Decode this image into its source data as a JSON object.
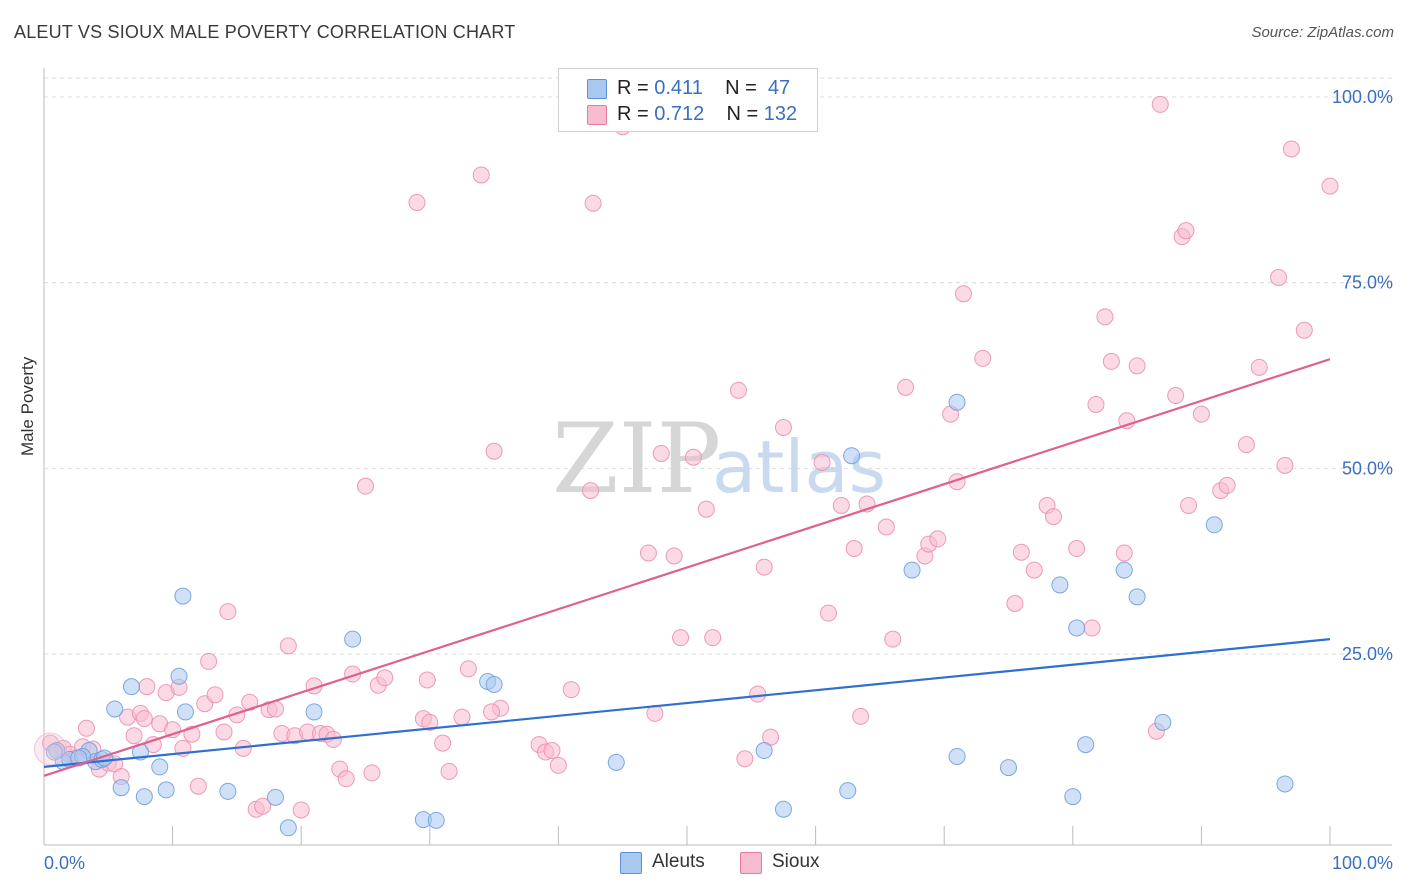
{
  "title": "ALEUT VS SIOUX MALE POVERTY CORRELATION CHART",
  "source": "Source: ZipAtlas.com",
  "legend": {
    "rows": [
      {
        "r_label": "R =",
        "r_value": "0.411",
        "n_label": "N =",
        "n_value": "47",
        "color": "#a9c8f0",
        "border": "#5b8fd6"
      },
      {
        "r_label": "R =",
        "r_value": "0.712",
        "n_label": "N =",
        "n_value": "132",
        "color": "#f7bcd0",
        "border": "#e87aa0"
      }
    ]
  },
  "bottom_legend": [
    {
      "label": "Aleuts",
      "color": "#a9c8f0",
      "border": "#5b8fd6"
    },
    {
      "label": "Sioux",
      "color": "#f7bcd0",
      "border": "#e87aa0"
    }
  ],
  "watermark": {
    "zip": "ZIP",
    "atlas": "atlas"
  },
  "chart_data": {
    "type": "scatter",
    "title": "ALEUT VS SIOUX MALE POVERTY CORRELATION CHART",
    "xlabel": "",
    "ylabel": "Male Poverty",
    "xlim": [
      0,
      100
    ],
    "ylim": [
      0,
      105
    ],
    "x_tick_labels": [
      "0.0%",
      "100.0%"
    ],
    "y_tick_labels": [
      "25.0%",
      "50.0%",
      "75.0%",
      "100.0%"
    ],
    "y_ticks": [
      25,
      50,
      75,
      100
    ],
    "series": [
      {
        "name": "Aleuts",
        "color": "#6f9fe0",
        "fill": "#a9c8f0",
        "line_color": "#2f6fd0",
        "trend": {
          "x": [
            0,
            100
          ],
          "y": [
            9.8,
            27.0
          ]
        },
        "points": [
          {
            "x": 1.5,
            "y": 10.5
          },
          {
            "x": 2.0,
            "y": 10.8
          },
          {
            "x": 3.5,
            "y": 12.0
          },
          {
            "x": 4.0,
            "y": 10.5
          },
          {
            "x": 4.5,
            "y": 10.8
          },
          {
            "x": 5.5,
            "y": 17.6
          },
          {
            "x": 6.0,
            "y": 7.0
          },
          {
            "x": 6.8,
            "y": 20.6
          },
          {
            "x": 7.5,
            "y": 11.8
          },
          {
            "x": 7.8,
            "y": 5.8
          },
          {
            "x": 9.0,
            "y": 9.8
          },
          {
            "x": 9.5,
            "y": 6.7
          },
          {
            "x": 10.5,
            "y": 22.0
          },
          {
            "x": 10.8,
            "y": 32.8
          },
          {
            "x": 11.0,
            "y": 17.2
          },
          {
            "x": 14.3,
            "y": 6.5
          },
          {
            "x": 18.0,
            "y": 5.7
          },
          {
            "x": 19.0,
            "y": 1.6
          },
          {
            "x": 21.0,
            "y": 17.2
          },
          {
            "x": 24.0,
            "y": 27.0
          },
          {
            "x": 29.5,
            "y": 2.7
          },
          {
            "x": 30.5,
            "y": 2.6
          },
          {
            "x": 34.5,
            "y": 21.3
          },
          {
            "x": 35.0,
            "y": 20.9
          },
          {
            "x": 44.5,
            "y": 10.4
          },
          {
            "x": 56.0,
            "y": 12.0
          },
          {
            "x": 57.5,
            "y": 4.1
          },
          {
            "x": 62.5,
            "y": 6.6
          },
          {
            "x": 62.8,
            "y": 51.7
          },
          {
            "x": 67.5,
            "y": 36.3
          },
          {
            "x": 71.0,
            "y": 58.9
          },
          {
            "x": 71.0,
            "y": 11.2
          },
          {
            "x": 75.0,
            "y": 9.7
          },
          {
            "x": 79.0,
            "y": 34.3
          },
          {
            "x": 80.0,
            "y": 5.8
          },
          {
            "x": 80.3,
            "y": 28.5
          },
          {
            "x": 81.0,
            "y": 12.8
          },
          {
            "x": 84.0,
            "y": 36.3
          },
          {
            "x": 85.0,
            "y": 32.7
          },
          {
            "x": 87.0,
            "y": 15.8
          },
          {
            "x": 91.0,
            "y": 42.4
          },
          {
            "x": 96.5,
            "y": 7.5
          },
          {
            "x": 1.0,
            "y": 12.0
          },
          {
            "x": 3.0,
            "y": 11.2
          },
          {
            "x": 4.7,
            "y": 11.0
          },
          {
            "x": 2.7,
            "y": 11.0
          },
          {
            "x": 0.8,
            "y": 11.8
          }
        ]
      },
      {
        "name": "Sioux",
        "color": "#ec8fb0",
        "fill": "#f7bcd0",
        "line_color": "#e0608e",
        "trend": {
          "x": [
            0,
            100
          ],
          "y": [
            8.6,
            64.7
          ]
        },
        "points": [
          {
            "x": 0.5,
            "y": 13.0
          },
          {
            "x": 1.0,
            "y": 12.0
          },
          {
            "x": 1.5,
            "y": 12.3
          },
          {
            "x": 2.0,
            "y": 11.5
          },
          {
            "x": 2.5,
            "y": 11.0
          },
          {
            "x": 3.0,
            "y": 12.5
          },
          {
            "x": 3.3,
            "y": 15.0
          },
          {
            "x": 3.8,
            "y": 12.2
          },
          {
            "x": 4.3,
            "y": 9.5
          },
          {
            "x": 5.0,
            "y": 10.3
          },
          {
            "x": 5.5,
            "y": 10.2
          },
          {
            "x": 6.0,
            "y": 8.5
          },
          {
            "x": 6.5,
            "y": 16.5
          },
          {
            "x": 7.0,
            "y": 14.0
          },
          {
            "x": 7.5,
            "y": 17.0
          },
          {
            "x": 7.8,
            "y": 16.3
          },
          {
            "x": 8.0,
            "y": 20.6
          },
          {
            "x": 8.5,
            "y": 12.8
          },
          {
            "x": 9.0,
            "y": 15.6
          },
          {
            "x": 9.5,
            "y": 19.8
          },
          {
            "x": 10.0,
            "y": 14.8
          },
          {
            "x": 10.5,
            "y": 20.5
          },
          {
            "x": 10.8,
            "y": 12.3
          },
          {
            "x": 11.5,
            "y": 14.2
          },
          {
            "x": 12.0,
            "y": 7.2
          },
          {
            "x": 12.5,
            "y": 18.3
          },
          {
            "x": 12.8,
            "y": 24.0
          },
          {
            "x": 13.3,
            "y": 19.5
          },
          {
            "x": 14.0,
            "y": 14.5
          },
          {
            "x": 14.3,
            "y": 30.7
          },
          {
            "x": 15.0,
            "y": 16.8
          },
          {
            "x": 15.5,
            "y": 12.3
          },
          {
            "x": 16.0,
            "y": 18.5
          },
          {
            "x": 16.5,
            "y": 4.1
          },
          {
            "x": 17.0,
            "y": 4.5
          },
          {
            "x": 17.5,
            "y": 17.5
          },
          {
            "x": 18.0,
            "y": 17.6
          },
          {
            "x": 18.5,
            "y": 14.3
          },
          {
            "x": 19.0,
            "y": 26.1
          },
          {
            "x": 19.5,
            "y": 14.0
          },
          {
            "x": 20.0,
            "y": 4.0
          },
          {
            "x": 20.5,
            "y": 14.5
          },
          {
            "x": 21.0,
            "y": 20.7
          },
          {
            "x": 21.5,
            "y": 14.3
          },
          {
            "x": 22.0,
            "y": 14.2
          },
          {
            "x": 22.5,
            "y": 13.5
          },
          {
            "x": 23.0,
            "y": 9.5
          },
          {
            "x": 23.5,
            "y": 8.2
          },
          {
            "x": 24.0,
            "y": 22.3
          },
          {
            "x": 25.0,
            "y": 47.6
          },
          {
            "x": 25.5,
            "y": 9.0
          },
          {
            "x": 26.0,
            "y": 20.8
          },
          {
            "x": 26.5,
            "y": 21.8
          },
          {
            "x": 29.0,
            "y": 85.8
          },
          {
            "x": 29.5,
            "y": 16.3
          },
          {
            "x": 29.8,
            "y": 21.5
          },
          {
            "x": 30.0,
            "y": 15.8
          },
          {
            "x": 31.0,
            "y": 13.0
          },
          {
            "x": 31.5,
            "y": 9.2
          },
          {
            "x": 32.5,
            "y": 16.5
          },
          {
            "x": 33.0,
            "y": 23.0
          },
          {
            "x": 34.0,
            "y": 89.5
          },
          {
            "x": 35.0,
            "y": 52.3
          },
          {
            "x": 35.5,
            "y": 17.7
          },
          {
            "x": 34.8,
            "y": 17.2
          },
          {
            "x": 38.5,
            "y": 12.8
          },
          {
            "x": 39.0,
            "y": 11.8
          },
          {
            "x": 39.5,
            "y": 12.0
          },
          {
            "x": 40.0,
            "y": 10.0
          },
          {
            "x": 41.0,
            "y": 20.2
          },
          {
            "x": 42.5,
            "y": 47.0
          },
          {
            "x": 42.7,
            "y": 85.7
          },
          {
            "x": 45.0,
            "y": 96.0
          },
          {
            "x": 47.0,
            "y": 38.6
          },
          {
            "x": 47.5,
            "y": 17.0
          },
          {
            "x": 48.0,
            "y": 52.0
          },
          {
            "x": 49.0,
            "y": 38.2
          },
          {
            "x": 49.5,
            "y": 27.2
          },
          {
            "x": 50.5,
            "y": 51.5
          },
          {
            "x": 51.5,
            "y": 44.5
          },
          {
            "x": 52.0,
            "y": 27.2
          },
          {
            "x": 54.0,
            "y": 60.5
          },
          {
            "x": 54.5,
            "y": 10.9
          },
          {
            "x": 55.5,
            "y": 19.6
          },
          {
            "x": 56.0,
            "y": 36.7
          },
          {
            "x": 56.5,
            "y": 13.8
          },
          {
            "x": 57.5,
            "y": 55.5
          },
          {
            "x": 60.5,
            "y": 50.8
          },
          {
            "x": 61.0,
            "y": 30.5
          },
          {
            "x": 62.0,
            "y": 45.0
          },
          {
            "x": 63.0,
            "y": 39.2
          },
          {
            "x": 63.5,
            "y": 16.6
          },
          {
            "x": 64.0,
            "y": 45.2
          },
          {
            "x": 65.5,
            "y": 42.1
          },
          {
            "x": 66.0,
            "y": 27.0
          },
          {
            "x": 67.0,
            "y": 60.9
          },
          {
            "x": 68.5,
            "y": 38.2
          },
          {
            "x": 68.8,
            "y": 39.8
          },
          {
            "x": 69.5,
            "y": 40.5
          },
          {
            "x": 70.5,
            "y": 57.3
          },
          {
            "x": 71.0,
            "y": 48.2
          },
          {
            "x": 71.5,
            "y": 73.5
          },
          {
            "x": 73.0,
            "y": 64.8
          },
          {
            "x": 75.5,
            "y": 31.8
          },
          {
            "x": 76.0,
            "y": 38.7
          },
          {
            "x": 77.0,
            "y": 36.3
          },
          {
            "x": 78.0,
            "y": 45.0
          },
          {
            "x": 78.5,
            "y": 43.5
          },
          {
            "x": 80.3,
            "y": 39.2
          },
          {
            "x": 81.5,
            "y": 28.5
          },
          {
            "x": 81.8,
            "y": 58.6
          },
          {
            "x": 82.5,
            "y": 70.4
          },
          {
            "x": 83.0,
            "y": 64.4
          },
          {
            "x": 84.0,
            "y": 38.6
          },
          {
            "x": 84.2,
            "y": 56.4
          },
          {
            "x": 85.0,
            "y": 63.8
          },
          {
            "x": 86.5,
            "y": 14.6
          },
          {
            "x": 86.8,
            "y": 99.0
          },
          {
            "x": 88.0,
            "y": 59.8
          },
          {
            "x": 88.5,
            "y": 81.2
          },
          {
            "x": 88.8,
            "y": 82.0
          },
          {
            "x": 89.0,
            "y": 45.0
          },
          {
            "x": 90.0,
            "y": 57.3
          },
          {
            "x": 91.5,
            "y": 47.0
          },
          {
            "x": 92.0,
            "y": 47.7
          },
          {
            "x": 93.5,
            "y": 53.2
          },
          {
            "x": 94.5,
            "y": 63.6
          },
          {
            "x": 96.0,
            "y": 75.7
          },
          {
            "x": 96.5,
            "y": 50.4
          },
          {
            "x": 97.0,
            "y": 93.0
          },
          {
            "x": 98.0,
            "y": 68.6
          },
          {
            "x": 100.0,
            "y": 88.0
          }
        ]
      }
    ]
  }
}
